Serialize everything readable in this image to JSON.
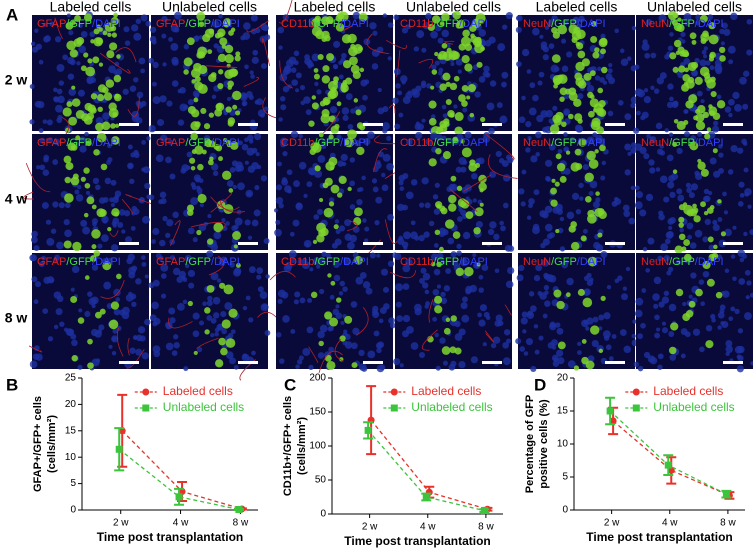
{
  "figure_a": {
    "panel_label": "A",
    "column_headers": [
      "Labeled cells",
      "Unlabeled cells",
      "Labeled cells",
      "Unlabeled cells",
      "Labeled cells",
      "Unlabeled cells"
    ],
    "row_labels": [
      "2 w",
      "4 w",
      "8 w"
    ],
    "stain_labels": [
      [
        "GFAP",
        "/GFP",
        "/DAPI"
      ],
      [
        "CD11b",
        "/GFP",
        "/DAPI"
      ],
      [
        "NeuN",
        "/GFP",
        "/DAPI"
      ]
    ]
  },
  "chart_data": [
    {
      "type": "line",
      "panel_label": "B",
      "ylabel": [
        "GFAP+/GFP+ cells",
        "(cells/mm²)"
      ],
      "xlabel": "Time post transplantation",
      "categories": [
        "2 w",
        "4 w",
        "8 w"
      ],
      "ylim": [
        0,
        25
      ],
      "yticks": [
        0,
        5,
        10,
        15,
        20,
        25
      ],
      "legend": "upper right",
      "series": [
        {
          "name": "Labeled cells",
          "color": "#e8312a",
          "values": [
            15,
            3.5,
            0.2
          ],
          "errors": [
            6.8,
            1.8,
            0.1
          ]
        },
        {
          "name": "Unlabeled cells",
          "color": "#3cc43c",
          "values": [
            11.5,
            2.5,
            0.1
          ],
          "errors": [
            4,
            1.5,
            0.1
          ]
        }
      ]
    },
    {
      "type": "line",
      "panel_label": "C",
      "ylabel": [
        "CD11b+/GFP+ cells",
        "(cells/mm²)"
      ],
      "xlabel": "Time post transplantation",
      "categories": [
        "2 w",
        "4 w",
        "8 w"
      ],
      "ylim": [
        0,
        200
      ],
      "yticks": [
        0,
        50,
        100,
        150,
        200
      ],
      "legend": "upper right",
      "series": [
        {
          "name": "Labeled cells",
          "color": "#e8312a",
          "values": [
            138,
            32,
            7
          ],
          "errors": [
            50,
            8,
            2
          ]
        },
        {
          "name": "Unlabeled cells",
          "color": "#3cc43c",
          "values": [
            123,
            25,
            5
          ],
          "errors": [
            12,
            5,
            2
          ]
        }
      ]
    },
    {
      "type": "line",
      "panel_label": "D",
      "ylabel": [
        "Percentage of GFP",
        "positive cells (%)"
      ],
      "xlabel": "Time post transplantation",
      "categories": [
        "2 w",
        "4 w",
        "8 w"
      ],
      "ylim": [
        0,
        20
      ],
      "yticks": [
        0,
        5,
        10,
        15,
        20
      ],
      "legend": "upper right",
      "series": [
        {
          "name": "Labeled cells",
          "color": "#e8312a",
          "values": [
            13.5,
            6,
            2.2
          ],
          "errors": [
            2,
            2,
            0.5
          ]
        },
        {
          "name": "Unlabeled cells",
          "color": "#3cc43c",
          "values": [
            15,
            6.8,
            2.4
          ],
          "errors": [
            2,
            1.5,
            0.5
          ]
        }
      ]
    }
  ]
}
